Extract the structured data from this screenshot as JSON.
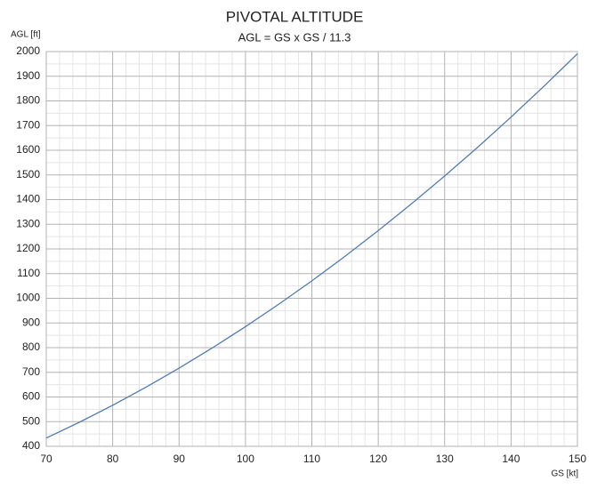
{
  "chart_data": {
    "type": "line",
    "title": "PIVOTAL ALTITUDE",
    "subtitle": "AGL = GS x GS / 11.3",
    "y_label": "AGL [ft]",
    "x_label": "GS [kt]",
    "x": [
      70,
      75,
      80,
      85,
      90,
      95,
      100,
      105,
      110,
      115,
      120,
      125,
      130,
      135,
      140,
      145,
      150
    ],
    "series": [
      {
        "name": "AGL",
        "color": "#4f7cb3",
        "values": [
          433.6,
          497.8,
          566.4,
          639.4,
          716.8,
          798.7,
          885.0,
          975.7,
          1070.8,
          1170.4,
          1274.3,
          1382.7,
          1495.6,
          1612.8,
          1734.5,
          1860.6,
          1991.2
        ]
      }
    ],
    "xlim": [
      70,
      150
    ],
    "xticks": [
      70,
      80,
      90,
      100,
      110,
      120,
      130,
      140,
      150
    ],
    "ylim": [
      400,
      2000
    ],
    "yticks": [
      400,
      500,
      600,
      700,
      800,
      900,
      1000,
      1100,
      1200,
      1300,
      1400,
      1500,
      1600,
      1700,
      1800,
      1900,
      2000
    ],
    "grid": true,
    "minor_divisions": {
      "x": 5,
      "y": 2
    },
    "legend": false
  }
}
